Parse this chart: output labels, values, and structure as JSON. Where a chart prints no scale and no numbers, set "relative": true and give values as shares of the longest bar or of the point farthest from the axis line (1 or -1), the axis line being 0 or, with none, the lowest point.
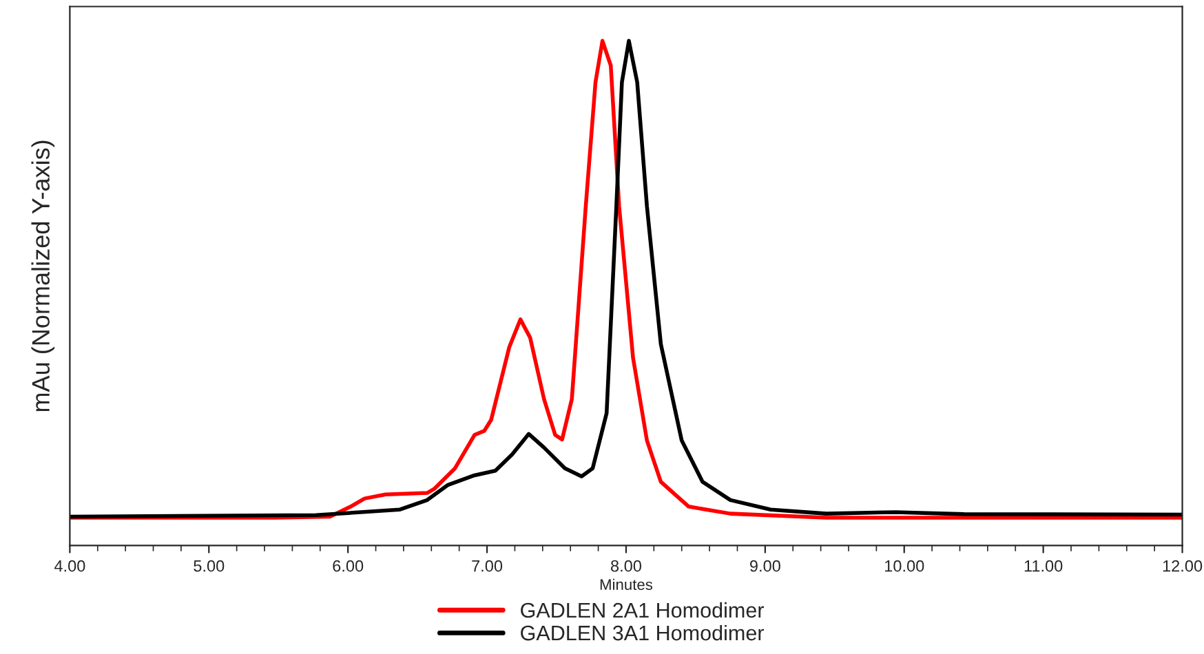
{
  "chart_data": {
    "type": "line",
    "xlabel": "Minutes",
    "ylabel": "mAu (Normalized Y-axis)",
    "relative": true,
    "xlim": [
      4,
      12
    ],
    "xticks": [
      {
        "value": 4,
        "label": "4.00"
      },
      {
        "value": 5,
        "label": "5.00"
      },
      {
        "value": 6,
        "label": "6.00"
      },
      {
        "value": 7,
        "label": "7.00"
      },
      {
        "value": 8,
        "label": "8.00"
      },
      {
        "value": 9,
        "label": "9.00"
      },
      {
        "value": 10,
        "label": "10.00"
      },
      {
        "value": 11,
        "label": "11.00"
      },
      {
        "value": 12,
        "label": "12.00"
      }
    ],
    "tick_labels": "x",
    "grid": false,
    "legend": "bottom",
    "marker": "none",
    "line_style": "solid",
    "series": [
      {
        "name": "GADLEN 2A1 Homodimer",
        "color": "#ff0000",
        "x": [
          4.0,
          5.48,
          5.87,
          6.02,
          6.12,
          6.27,
          6.57,
          6.62,
          6.77,
          6.91,
          6.98,
          7.03,
          7.16,
          7.24,
          7.31,
          7.41,
          7.49,
          7.54,
          7.61,
          7.71,
          7.78,
          7.83,
          7.89,
          7.95,
          8.05,
          8.15,
          8.25,
          8.45,
          8.75,
          9.44,
          12.0
        ],
        "values": [
          0.055,
          0.055,
          0.057,
          0.077,
          0.093,
          0.101,
          0.104,
          0.112,
          0.153,
          0.219,
          0.227,
          0.249,
          0.393,
          0.448,
          0.412,
          0.29,
          0.219,
          0.21,
          0.29,
          0.672,
          0.918,
          1.0,
          0.951,
          0.672,
          0.372,
          0.208,
          0.126,
          0.077,
          0.063,
          0.055,
          0.055
        ]
      },
      {
        "name": "GADLEN 3A1 Homodimer",
        "color": "#000000",
        "x": [
          4.0,
          5.77,
          6.37,
          6.57,
          6.72,
          6.91,
          7.06,
          7.18,
          7.3,
          7.41,
          7.56,
          7.68,
          7.76,
          7.86,
          7.93,
          7.97,
          8.02,
          8.08,
          8.15,
          8.25,
          8.4,
          8.55,
          8.75,
          9.04,
          9.44,
          9.94,
          10.43,
          12.0
        ],
        "values": [
          0.057,
          0.06,
          0.071,
          0.09,
          0.12,
          0.139,
          0.148,
          0.18,
          0.221,
          0.194,
          0.153,
          0.137,
          0.153,
          0.262,
          0.672,
          0.918,
          1.0,
          0.918,
          0.672,
          0.399,
          0.208,
          0.126,
          0.09,
          0.071,
          0.063,
          0.066,
          0.062,
          0.061
        ]
      }
    ]
  }
}
